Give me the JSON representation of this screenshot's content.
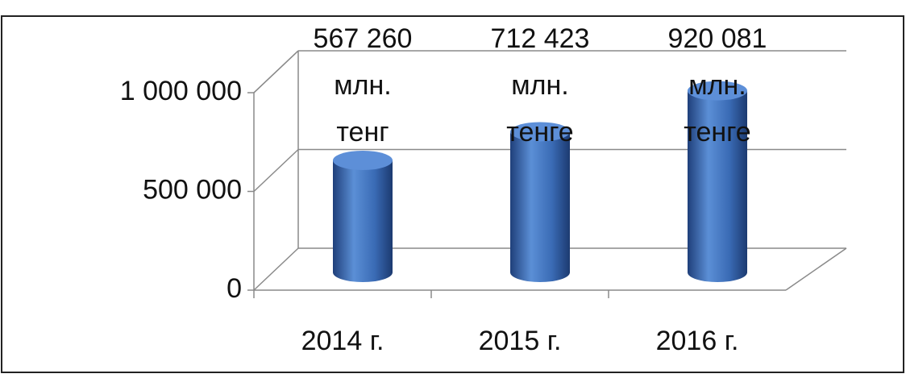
{
  "chart_data": {
    "type": "bar",
    "categories": [
      "2014 г.",
      "2015 г.",
      "2016 г."
    ],
    "values": [
      567260,
      712423,
      920081
    ],
    "value_labels": [
      "567 260 млн. тенг",
      "712 423 млн. тенге",
      "920 081 млн. тенге"
    ],
    "color": "#3a6bb5",
    "ylim": [
      0,
      1000000
    ],
    "yticks": [
      0,
      {
        "value": 500000,
        "label": "500 000"
      },
      {
        "value": 1000000,
        "label": "1 000 000"
      }
    ],
    "grid": true
  }
}
